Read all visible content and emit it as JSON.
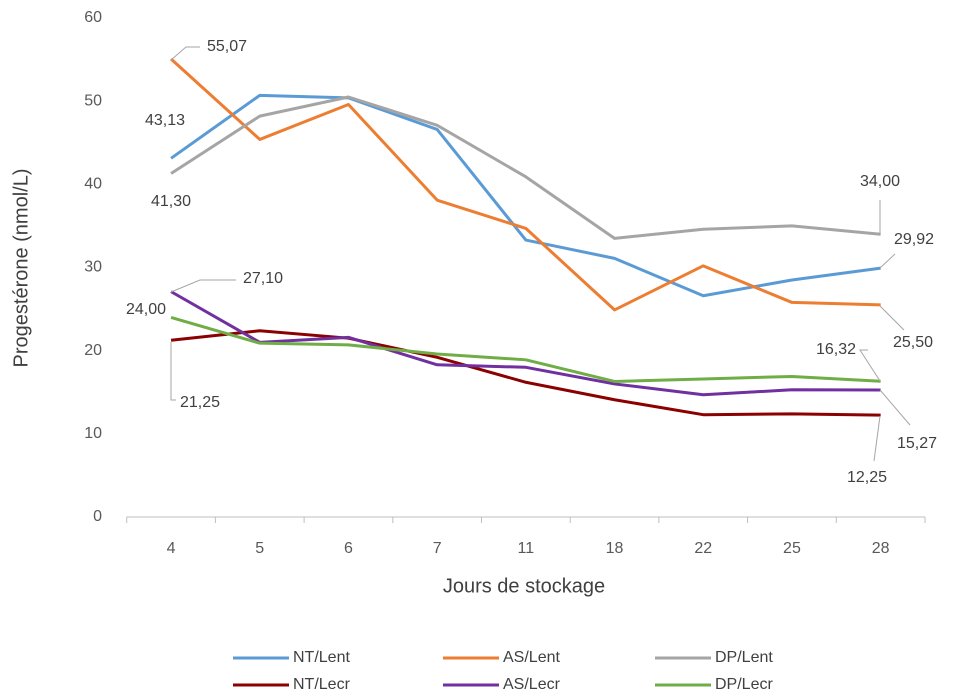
{
  "chart_data": {
    "type": "line",
    "x_label": "Jours de stockage",
    "y_label": "Progestérone (nmol/L)",
    "categories": [
      "4",
      "5",
      "6",
      "7",
      "11",
      "18",
      "22",
      "25",
      "28"
    ],
    "ylim": [
      0,
      60
    ],
    "yticks": [
      0,
      10,
      20,
      30,
      40,
      50,
      60
    ],
    "grid": false,
    "legend": "bottom",
    "series": [
      {
        "name": "NT/Lent",
        "color": "#5b9bd5",
        "values": [
          43.13,
          50.7,
          50.4,
          46.6,
          33.3,
          31.1,
          26.6,
          28.5,
          29.92
        ],
        "value_labels": [
          "43,13",
          null,
          null,
          null,
          null,
          null,
          null,
          null,
          "29,92"
        ]
      },
      {
        "name": "AS/Lent",
        "color": "#ed7d31",
        "values": [
          55.07,
          45.4,
          49.6,
          38.1,
          34.7,
          24.9,
          30.2,
          25.8,
          25.5
        ],
        "value_labels": [
          "55,07",
          null,
          null,
          null,
          null,
          null,
          null,
          null,
          "25,50"
        ]
      },
      {
        "name": "DP/Lent",
        "color": "#a5a5a5",
        "values": [
          41.3,
          48.2,
          50.5,
          47.1,
          40.9,
          33.5,
          34.6,
          35.0,
          34.0
        ],
        "value_labels": [
          "41,30",
          null,
          null,
          null,
          null,
          null,
          null,
          null,
          "34,00"
        ]
      },
      {
        "name": "NT/Lecr",
        "color": "#8b0000",
        "values": [
          21.25,
          22.4,
          21.5,
          19.2,
          16.2,
          14.1,
          12.3,
          12.4,
          12.25
        ],
        "value_labels": [
          "21,25",
          null,
          null,
          null,
          null,
          null,
          null,
          null,
          "12,25"
        ]
      },
      {
        "name": "AS/Lecr",
        "color": "#7030a0",
        "values": [
          27.1,
          21.0,
          21.6,
          18.3,
          18.0,
          16.0,
          14.7,
          15.3,
          15.27
        ],
        "value_labels": [
          "27,10",
          null,
          null,
          null,
          null,
          null,
          null,
          null,
          "15,27"
        ]
      },
      {
        "name": "DP/Lecr",
        "color": "#70ad47",
        "values": [
          24.0,
          20.9,
          20.7,
          19.6,
          18.9,
          16.3,
          16.6,
          16.9,
          16.32
        ],
        "value_labels": [
          "24,00",
          null,
          null,
          null,
          null,
          null,
          null,
          null,
          "16,32"
        ]
      }
    ]
  }
}
